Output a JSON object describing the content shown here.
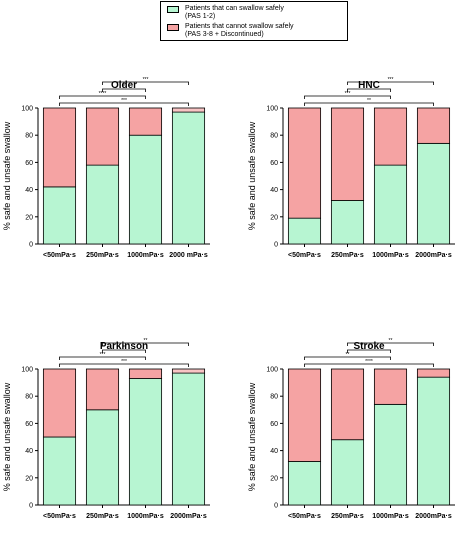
{
  "legend": {
    "safe_line1": "Patients that can swallow safely",
    "safe_line2": "(PAS 1-2)",
    "unsafe_line1": "Patients that cannot swallow safely",
    "unsafe_line2": "(PAS 3-8 + Discontinued)"
  },
  "colors": {
    "safe": "#b7f5d2",
    "unsafe": "#f5a3a3",
    "unsafe_light": "#f8c4c4"
  },
  "chart_data": [
    {
      "type": "bar",
      "title": "Older",
      "ylabel": "% safe and unsafe swallow",
      "ylim": [
        0,
        100
      ],
      "yticks": [
        "0",
        "20",
        "40",
        "60",
        "80",
        "100"
      ],
      "categories": [
        "<50mPa·s",
        "250mPa·s",
        "1000mPa·s",
        "2000 mPa·s"
      ],
      "series": [
        {
          "name": "Patients that can swallow safely",
          "values": [
            42,
            58,
            80,
            97
          ]
        },
        {
          "name": "Patients that cannot swallow safely",
          "values": [
            58,
            42,
            20,
            3
          ]
        }
      ],
      "significance": [
        {
          "from": 1,
          "to": 3,
          "label": "***"
        },
        {
          "from": 1,
          "to": 2,
          "label": "*"
        },
        {
          "from": 0,
          "to": 2,
          "label": "****"
        },
        {
          "from": 0,
          "to": 3,
          "label": "***"
        }
      ]
    },
    {
      "type": "bar",
      "title": "HNC",
      "ylabel": "% safe and unsafe swallow",
      "ylim": [
        0,
        100
      ],
      "yticks": [
        "0",
        "20",
        "40",
        "60",
        "80",
        "100"
      ],
      "categories": [
        "<50mPa·s",
        "250mPa·s",
        "1000mPa·s",
        "2000mPa·s"
      ],
      "series": [
        {
          "name": "Patients that can swallow safely",
          "values": [
            19,
            32,
            58,
            74
          ]
        },
        {
          "name": "Patients that cannot swallow safely",
          "values": [
            81,
            68,
            42,
            26
          ]
        }
      ],
      "significance": [
        {
          "from": 1,
          "to": 3,
          "label": "***"
        },
        {
          "from": 1,
          "to": 2,
          "label": "*"
        },
        {
          "from": 0,
          "to": 2,
          "label": "***"
        },
        {
          "from": 0,
          "to": 3,
          "label": "**"
        }
      ]
    },
    {
      "type": "bar",
      "title": "Parkinson",
      "ylabel": "% safe and unsafe swallow",
      "ylim": [
        0,
        100
      ],
      "yticks": [
        "0",
        "20",
        "40",
        "60",
        "80",
        "100"
      ],
      "categories": [
        "<50mPa·s",
        "250mPa·s",
        "1000mPa·s",
        "2000mPa·s"
      ],
      "series": [
        {
          "name": "Patients that can swallow safely",
          "values": [
            50,
            70,
            93,
            97
          ]
        },
        {
          "name": "Patients that cannot swallow safely",
          "values": [
            50,
            30,
            7,
            3
          ]
        }
      ],
      "significance": [
        {
          "from": 1,
          "to": 3,
          "label": "**"
        },
        {
          "from": 1,
          "to": 2,
          "label": "*"
        },
        {
          "from": 0,
          "to": 2,
          "label": "***"
        },
        {
          "from": 0,
          "to": 3,
          "label": "***"
        }
      ]
    },
    {
      "type": "bar",
      "title": "Stroke",
      "ylabel": "% safe and unsafe swallow",
      "ylim": [
        0,
        100
      ],
      "yticks": [
        "0",
        "20",
        "40",
        "60",
        "80",
        "100"
      ],
      "categories": [
        "<50mPa·s",
        "250mPa·s",
        "1000mPa·s",
        "2000mPa·s"
      ],
      "series": [
        {
          "name": "Patients that can swallow safely",
          "values": [
            32,
            48,
            74,
            94
          ]
        },
        {
          "name": "Patients that cannot swallow safely",
          "values": [
            68,
            52,
            26,
            6
          ]
        }
      ],
      "significance": [
        {
          "from": 1,
          "to": 3,
          "label": "**"
        },
        {
          "from": 1,
          "to": 2,
          "label": "*"
        },
        {
          "from": 0,
          "to": 2,
          "label": "**"
        },
        {
          "from": 0,
          "to": 3,
          "label": "****"
        }
      ]
    }
  ]
}
